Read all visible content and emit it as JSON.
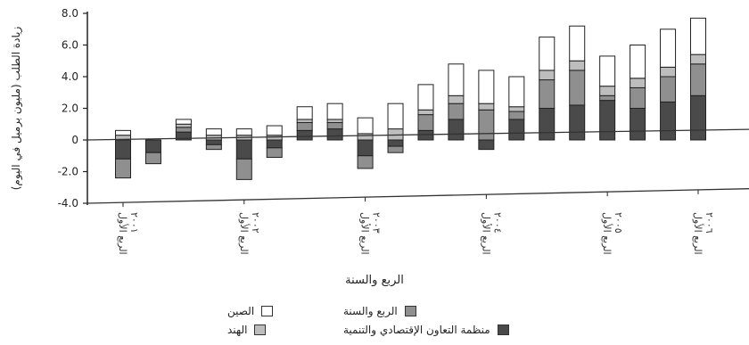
{
  "chart_data": {
    "type": "bar",
    "stacked": true,
    "title": "",
    "ylabel": "زيادة الطلب (مليون برميل في اليوم)",
    "xlabel": "الربع والسنة",
    "ylim": [
      -4.0,
      8.0
    ],
    "yticks": [
      "8.0",
      "6.0",
      "4.0",
      "2.0",
      "0",
      "-2.0",
      "-4.0"
    ],
    "category_labels": [
      {
        "quarter": "الربع الأول",
        "year": "٢٠٠١"
      },
      {
        "quarter": "الربع الأول",
        "year": "٢٠٠٢"
      },
      {
        "quarter": "الربع الأول",
        "year": "٢٠٠٣"
      },
      {
        "quarter": "الربع الأول",
        "year": "٢٠٠٤"
      },
      {
        "quarter": "الربع الأول",
        "year": "٢٠٠٥"
      },
      {
        "quarter": "الربع الأول",
        "year": "٢٠٠٦"
      }
    ],
    "bars": [
      {
        "segments": {
          "oecd": -1.2,
          "rest": -1.2,
          "india": 0.3,
          "china": 0.3
        }
      },
      {
        "segments": {
          "oecd": -0.8,
          "rest": -0.7,
          "india": 0.0,
          "china": 0.0
        }
      },
      {
        "segments": {
          "oecd": 0.5,
          "rest": 0.3,
          "india": 0.2,
          "china": 0.3
        }
      },
      {
        "segments": {
          "oecd": -0.3,
          "rest": -0.3,
          "india": 0.3,
          "china": 0.4
        }
      },
      {
        "segments": {
          "oecd": -1.2,
          "rest": -1.3,
          "india": 0.3,
          "china": 0.4
        }
      },
      {
        "segments": {
          "oecd": -0.5,
          "rest": -0.6,
          "india": 0.3,
          "china": 0.6
        }
      },
      {
        "segments": {
          "oecd": 0.6,
          "rest": 0.5,
          "india": 0.2,
          "china": 0.8
        }
      },
      {
        "segments": {
          "oecd": 0.7,
          "rest": 0.4,
          "india": 0.2,
          "china": 1.0
        }
      },
      {
        "segments": {
          "oecd": -1.0,
          "rest": -0.8,
          "india": 0.4,
          "china": 1.0
        }
      },
      {
        "segments": {
          "oecd": -0.4,
          "rest": -0.4,
          "india": 0.7,
          "china": 1.6
        }
      },
      {
        "segments": {
          "oecd": 0.6,
          "rest": 1.0,
          "india": 0.3,
          "china": 1.6
        }
      },
      {
        "segments": {
          "oecd": 1.3,
          "rest": 1.0,
          "india": 0.5,
          "china": 2.0
        }
      },
      {
        "segments": {
          "oecd": -0.6,
          "rest": 1.9,
          "india": 0.4,
          "china": 2.1
        }
      },
      {
        "segments": {
          "oecd": 1.3,
          "rest": 0.5,
          "india": 0.3,
          "china": 1.9
        }
      },
      {
        "segments": {
          "oecd": 2.0,
          "rest": 1.8,
          "india": 0.6,
          "china": 2.1
        }
      },
      {
        "segments": {
          "oecd": 2.2,
          "rest": 2.2,
          "india": 0.6,
          "china": 2.2
        }
      },
      {
        "segments": {
          "oecd": 2.5,
          "rest": 0.3,
          "india": 0.6,
          "china": 1.9
        }
      },
      {
        "segments": {
          "oecd": 2.0,
          "rest": 1.3,
          "india": 0.6,
          "china": 2.1
        }
      },
      {
        "segments": {
          "oecd": 2.4,
          "rest": 1.6,
          "india": 0.6,
          "china": 2.4
        }
      },
      {
        "segments": {
          "oecd": 2.8,
          "rest": 2.0,
          "india": 0.6,
          "china": 2.3
        }
      }
    ],
    "series": [
      {
        "key": "china",
        "name": "الصين",
        "color": "#ffffff"
      },
      {
        "key": "india",
        "name": "الهند",
        "color": "#bdbdbd"
      },
      {
        "key": "rest",
        "name": "الربع والسنة",
        "color": "#8f8f8f"
      },
      {
        "key": "oecd",
        "name": "منظمة التعاون الإقتصادي والتنمية",
        "color": "#4a4a4a"
      }
    ],
    "grid": false,
    "legend_position": "bottom"
  }
}
